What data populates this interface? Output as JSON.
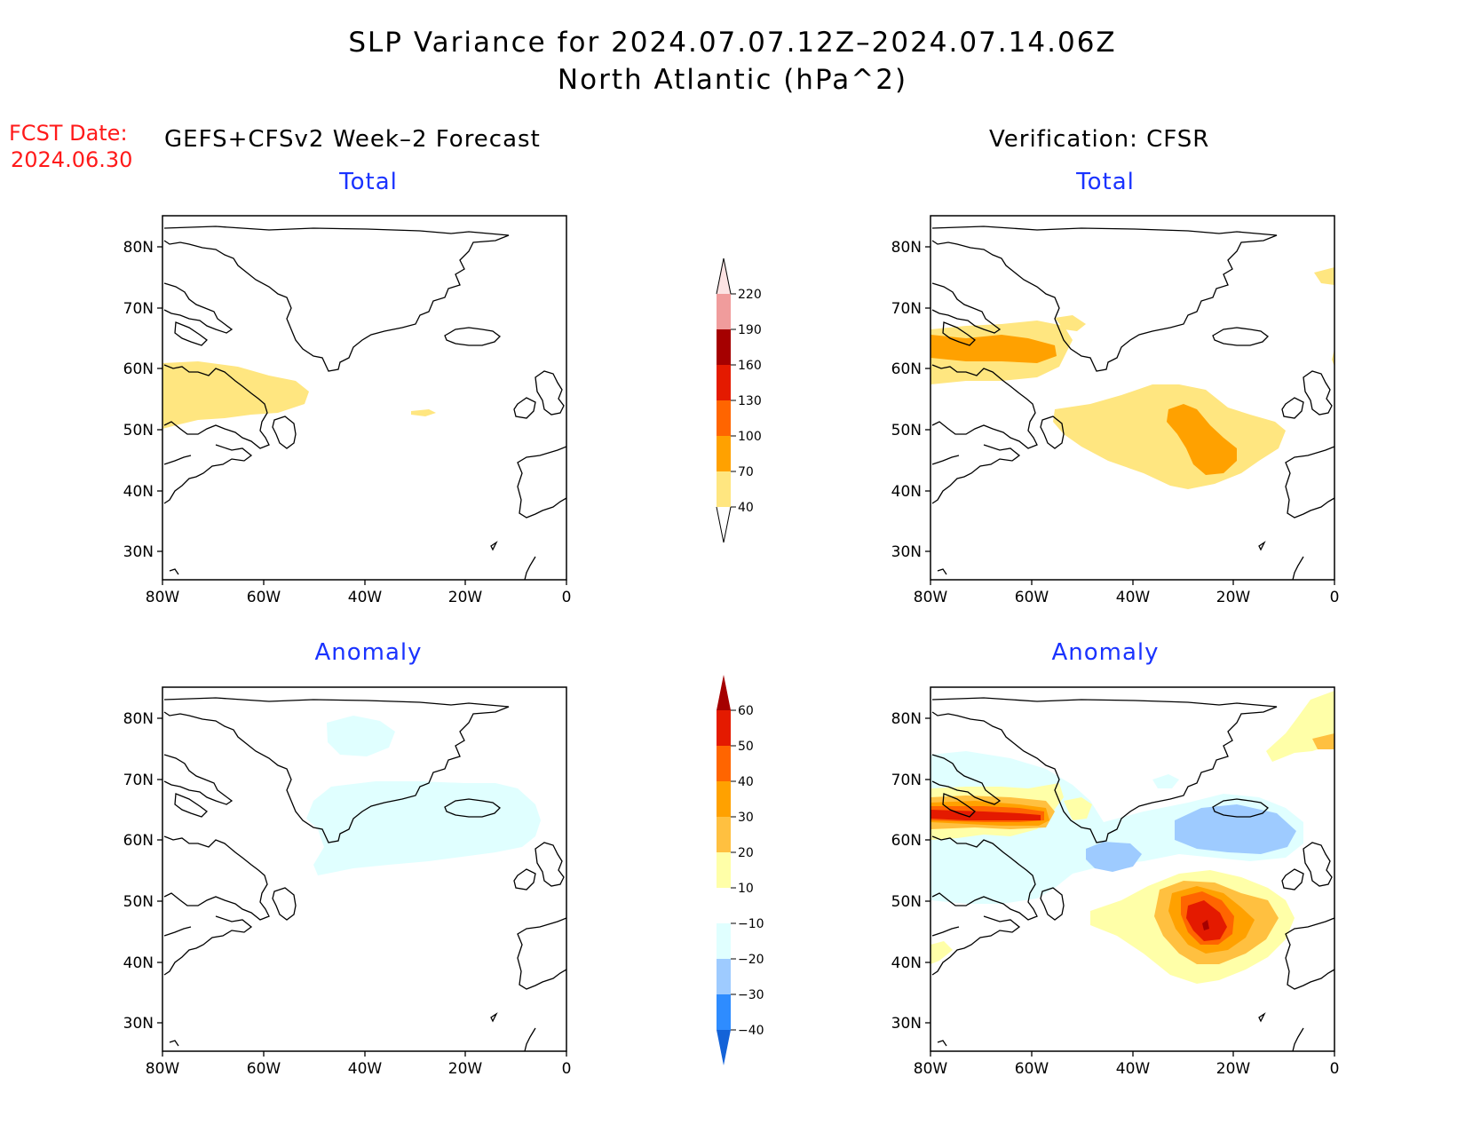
{
  "header": {
    "title_line1": "SLP Variance for 2024.07.07.12Z–2024.07.14.06Z",
    "title_line2": "North Atlantic (hPa^2)",
    "fcst_label": "FCST Date:",
    "fcst_date": "2024.06.30",
    "left_column_title": "GEFS+CFSv2 Week–2 Forecast",
    "right_column_title": "Verification: CFSR"
  },
  "panels": {
    "fcst_total_title": "Total",
    "fcst_anom_title": "Anomaly",
    "verif_total_title": "Total",
    "verif_anom_title": "Anomaly"
  },
  "axes": {
    "lat_labels": [
      "80N",
      "70N",
      "60N",
      "50N",
      "40N",
      "30N"
    ],
    "lon_labels": [
      "80W",
      "60W",
      "40W",
      "20W",
      "0"
    ]
  },
  "colorbars": {
    "total": {
      "levels": [
        "40",
        "70",
        "100",
        "130",
        "160",
        "190",
        "220"
      ],
      "colors": [
        "#ffe680",
        "#ffa100",
        "#ff6500",
        "#e41a00",
        "#a50000",
        "#f09c9c",
        "#fce3e3"
      ]
    },
    "anomaly": {
      "levels": [
        "60",
        "50",
        "40",
        "30",
        "20",
        "10",
        "−10",
        "−20",
        "−30",
        "−40"
      ],
      "colors": {
        "above_60": "#a50000",
        "50_60": "#e41a00",
        "40_50": "#ff6500",
        "30_40": "#ffa100",
        "20_30": "#ffc040",
        "10_20": "#ffffa8",
        "m10_10": "#ffffff",
        "m20_m10": "#e0ffff",
        "m30_m20": "#9ecbff",
        "m40_m30": "#2e8cff",
        "below_m40": "#1463d8"
      }
    }
  }
}
